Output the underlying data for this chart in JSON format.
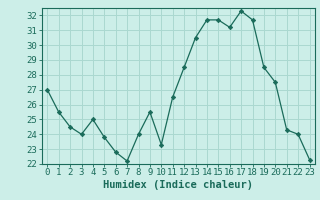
{
  "x": [
    0,
    1,
    2,
    3,
    4,
    5,
    6,
    7,
    8,
    9,
    10,
    11,
    12,
    13,
    14,
    15,
    16,
    17,
    18,
    19,
    20,
    21,
    22,
    23
  ],
  "y": [
    27,
    25.5,
    24.5,
    24.0,
    25.0,
    23.8,
    22.8,
    22.2,
    24.0,
    25.5,
    23.3,
    26.5,
    28.5,
    30.5,
    31.7,
    31.7,
    31.2,
    32.3,
    31.7,
    28.5,
    27.5,
    24.3,
    24.0,
    22.3
  ],
  "xlabel": "Humidex (Indice chaleur)",
  "ylim": [
    22,
    32.5
  ],
  "xlim": [
    -0.5,
    23.5
  ],
  "yticks": [
    22,
    23,
    24,
    25,
    26,
    27,
    28,
    29,
    30,
    31,
    32
  ],
  "xticks": [
    0,
    1,
    2,
    3,
    4,
    5,
    6,
    7,
    8,
    9,
    10,
    11,
    12,
    13,
    14,
    15,
    16,
    17,
    18,
    19,
    20,
    21,
    22,
    23
  ],
  "line_color": "#1a6b5a",
  "marker_color": "#1a6b5a",
  "bg_color": "#cceee8",
  "grid_color": "#aad8d0",
  "tick_color": "#1a6b5a",
  "xlabel_color": "#1a6b5a",
  "axis_color": "#1a6b5a",
  "font_size": 6.5,
  "xlabel_fontsize": 7.5
}
